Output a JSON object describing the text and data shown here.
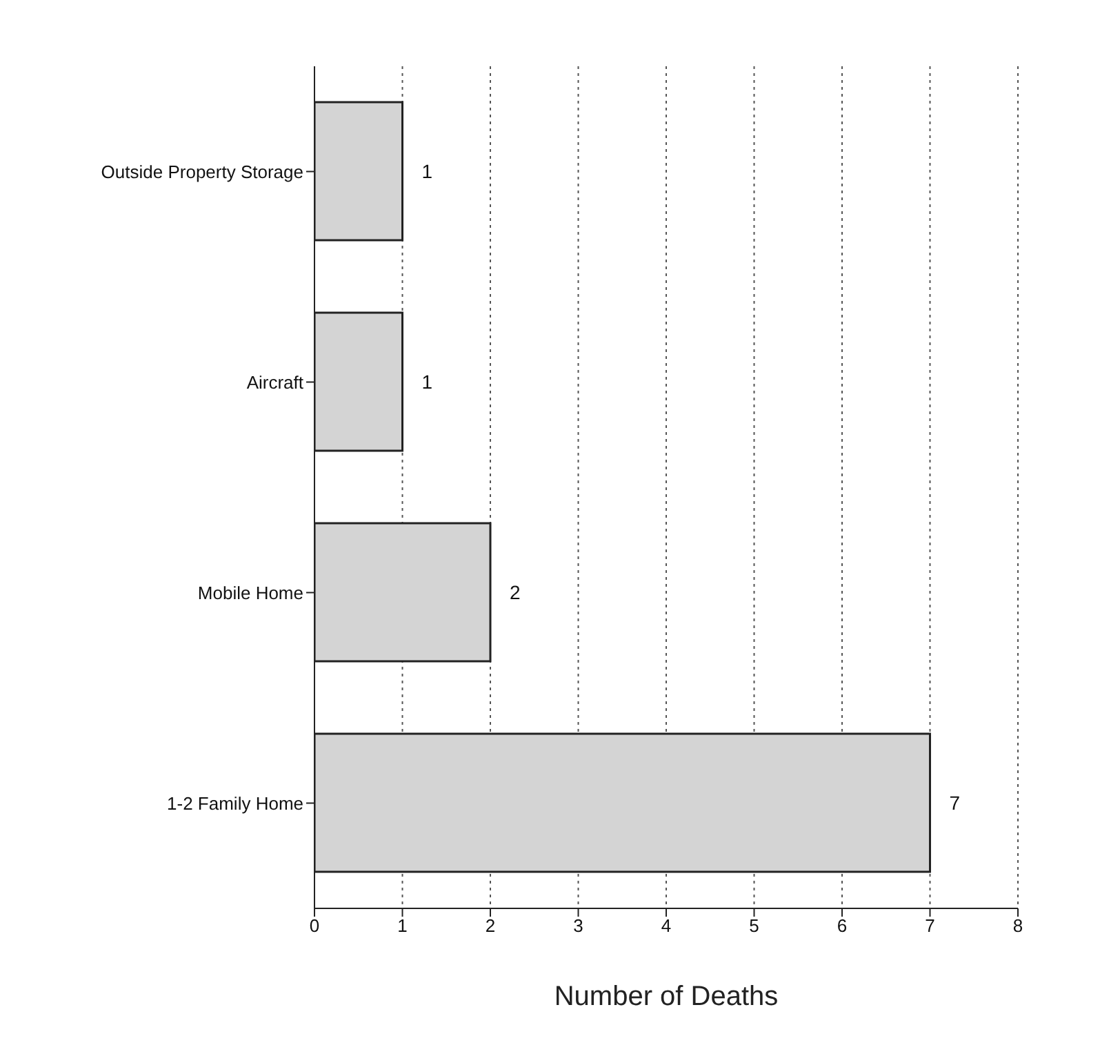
{
  "chart_data": {
    "type": "bar",
    "orientation": "horizontal",
    "categories": [
      "Outside Property Storage",
      "Aircraft",
      "Mobile Home",
      "1-2 Family Home"
    ],
    "values": [
      1,
      1,
      2,
      7
    ],
    "color": "#d4d4d4",
    "xlabel": "Number of Deaths",
    "xlim": [
      0,
      8
    ],
    "xticks": [
      0,
      1,
      2,
      3,
      4,
      5,
      6,
      7,
      8
    ],
    "grid": "x",
    "data_labels": true
  }
}
